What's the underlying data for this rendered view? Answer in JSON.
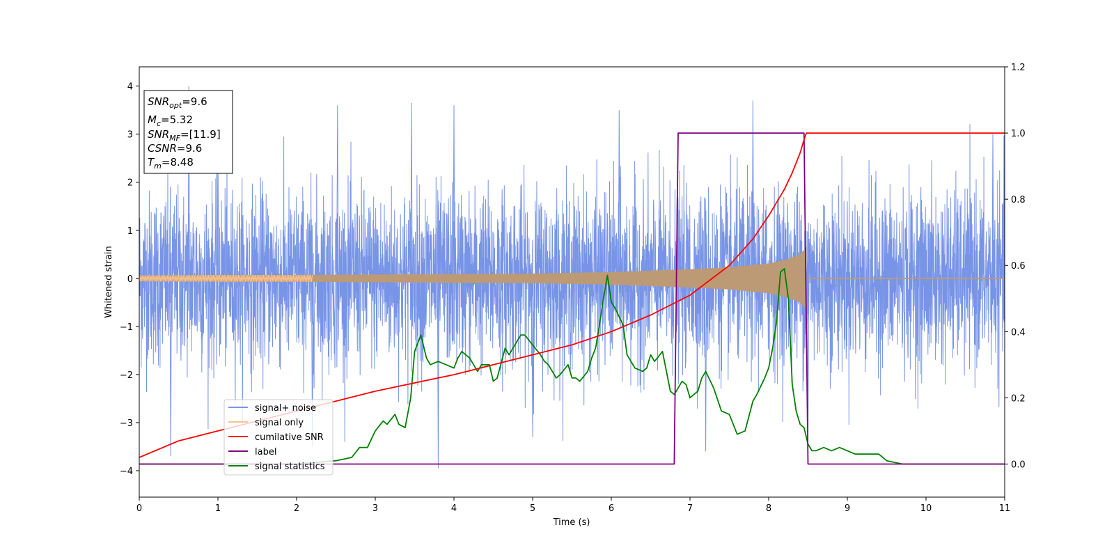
{
  "chart_data": {
    "type": "line",
    "title": "",
    "xlabel": "Time (s)",
    "ylabel": "Whitened strain",
    "xlim": [
      0,
      11
    ],
    "ylim": [
      -4.55,
      4.4
    ],
    "y2lim": [
      -0.1,
      1.2
    ],
    "xticks": [
      0,
      1,
      2,
      3,
      4,
      5,
      6,
      7,
      8,
      9,
      10,
      11
    ],
    "yticks": [
      -4,
      -3,
      -2,
      -1,
      0,
      1,
      2,
      3,
      4
    ],
    "y2ticks": [
      "0.0",
      "0.2",
      "0.4",
      "0.6",
      "0.8",
      "1.0",
      "1.2"
    ],
    "grid": false,
    "legend_position": "lower-left",
    "colors": {
      "signal_noise": "#7894e6",
      "signal_only": "#f9c18b",
      "overlap": "#bc9a75",
      "cumulative_snr": "#ff0000",
      "label": "#800080",
      "signal_statistics": "#008000"
    },
    "legend": [
      {
        "label": "signal+ noise",
        "color": "#7894e6"
      },
      {
        "label": "signal only",
        "color": "#f9c18b"
      },
      {
        "label": "cumilative SNR",
        "color": "#ff0000"
      },
      {
        "label": "label",
        "color": "#800080"
      },
      {
        "label": "signal statistics",
        "color": "#008000"
      }
    ],
    "annotation": {
      "lines": [
        {
          "base": "SNR",
          "sub": "opt",
          "rest": "=9.6"
        },
        {
          "base": "M",
          "sub": "c",
          "rest": "=5.32"
        },
        {
          "base": "SNR",
          "sub": "MF",
          "rest": "=[11.9]"
        },
        {
          "base": "CSNR",
          "sub": "",
          "rest": "=9.6"
        },
        {
          "base": "T",
          "sub": "m",
          "rest": "=8.48"
        }
      ]
    },
    "series": [
      {
        "name": "signal+ noise",
        "axis": "left",
        "noise_sigma": 0.9,
        "envelope_typical": [
          -2.1,
          2.4
        ],
        "peaks": [
          {
            "x": 0.63,
            "y": 4.0
          },
          {
            "x": 1.0,
            "y": 2.9
          },
          {
            "x": 2.52,
            "y": 3.6
          },
          {
            "x": 3.46,
            "y": 3.65
          },
          {
            "x": 3.8,
            "y": -3.95
          },
          {
            "x": 4.0,
            "y": 3.6
          },
          {
            "x": 6.1,
            "y": 3.5
          },
          {
            "x": 7.8,
            "y": 3.7
          },
          {
            "x": 10.85,
            "y": 3.0
          },
          {
            "x": 0.4,
            "y": -3.7
          },
          {
            "x": 2.2,
            "y": -3.5
          },
          {
            "x": 5.0,
            "y": -3.3
          },
          {
            "x": 7.2,
            "y": -3.6
          },
          {
            "x": 8.5,
            "y": -3.5
          }
        ]
      },
      {
        "name": "signal only",
        "axis": "left",
        "x": [
          0,
          1,
          2,
          3,
          4,
          5,
          6,
          7,
          7.5,
          8,
          8.2,
          8.4,
          8.48,
          8.5,
          11
        ],
        "amplitude": [
          0.06,
          0.07,
          0.07,
          0.08,
          0.09,
          0.1,
          0.13,
          0.19,
          0.23,
          0.31,
          0.38,
          0.5,
          0.65,
          0.0,
          0.0
        ]
      },
      {
        "name": "cumilative SNR",
        "axis": "right",
        "x": [
          0,
          0.5,
          1,
          2,
          3,
          4,
          5,
          5.5,
          6,
          6.5,
          7,
          7.5,
          7.8,
          8.0,
          8.2,
          8.3,
          8.4,
          8.45,
          8.48,
          11
        ],
        "y": [
          0.02,
          0.07,
          0.1,
          0.16,
          0.22,
          0.27,
          0.33,
          0.36,
          0.4,
          0.45,
          0.51,
          0.6,
          0.68,
          0.75,
          0.83,
          0.88,
          0.94,
          0.98,
          1.0,
          1.0
        ]
      },
      {
        "name": "label",
        "axis": "right",
        "x": [
          0,
          6.8,
          6.85,
          8.45,
          8.5,
          11
        ],
        "y": [
          0.0,
          0.0,
          1.0,
          1.0,
          0.0,
          0.0
        ]
      },
      {
        "name": "signal statistics",
        "axis": "right",
        "x": [
          0,
          1,
          2,
          2.5,
          2.7,
          2.8,
          2.9,
          3.0,
          3.1,
          3.15,
          3.25,
          3.3,
          3.38,
          3.45,
          3.5,
          3.58,
          3.65,
          3.7,
          3.8,
          3.9,
          4.0,
          4.05,
          4.1,
          4.2,
          4.3,
          4.35,
          4.45,
          4.5,
          4.55,
          4.65,
          4.7,
          4.8,
          4.85,
          4.9,
          5.0,
          5.1,
          5.15,
          5.2,
          5.25,
          5.3,
          5.35,
          5.45,
          5.5,
          5.55,
          5.6,
          5.7,
          5.75,
          5.8,
          5.85,
          5.9,
          5.95,
          6.0,
          6.05,
          6.15,
          6.2,
          6.3,
          6.4,
          6.45,
          6.5,
          6.55,
          6.65,
          6.75,
          6.8,
          6.9,
          6.95,
          7.0,
          7.05,
          7.1,
          7.15,
          7.2,
          7.3,
          7.4,
          7.5,
          7.6,
          7.7,
          7.8,
          7.85,
          7.95,
          8.0,
          8.05,
          8.1,
          8.15,
          8.2,
          8.25,
          8.3,
          8.35,
          8.4,
          8.45,
          8.5,
          8.55,
          8.6,
          8.7,
          8.8,
          8.9,
          9.0,
          9.1,
          9.2,
          9.3,
          9.4,
          9.5,
          9.7,
          10.0,
          11
        ],
        "y": [
          0.0,
          0.0,
          0.0,
          0.01,
          0.02,
          0.05,
          0.05,
          0.1,
          0.13,
          0.12,
          0.15,
          0.12,
          0.11,
          0.2,
          0.34,
          0.39,
          0.32,
          0.3,
          0.31,
          0.3,
          0.29,
          0.32,
          0.34,
          0.32,
          0.28,
          0.3,
          0.3,
          0.25,
          0.26,
          0.35,
          0.33,
          0.37,
          0.39,
          0.39,
          0.36,
          0.33,
          0.31,
          0.3,
          0.28,
          0.26,
          0.27,
          0.3,
          0.26,
          0.26,
          0.25,
          0.28,
          0.32,
          0.35,
          0.42,
          0.5,
          0.57,
          0.49,
          0.47,
          0.42,
          0.33,
          0.29,
          0.28,
          0.29,
          0.33,
          0.31,
          0.34,
          0.22,
          0.21,
          0.25,
          0.24,
          0.2,
          0.21,
          0.22,
          0.26,
          0.28,
          0.23,
          0.16,
          0.15,
          0.09,
          0.1,
          0.19,
          0.21,
          0.26,
          0.29,
          0.35,
          0.43,
          0.58,
          0.59,
          0.5,
          0.24,
          0.16,
          0.12,
          0.11,
          0.06,
          0.04,
          0.04,
          0.05,
          0.04,
          0.05,
          0.04,
          0.03,
          0.03,
          0.03,
          0.03,
          0.01,
          0.0,
          0.0,
          0.0
        ]
      }
    ]
  }
}
